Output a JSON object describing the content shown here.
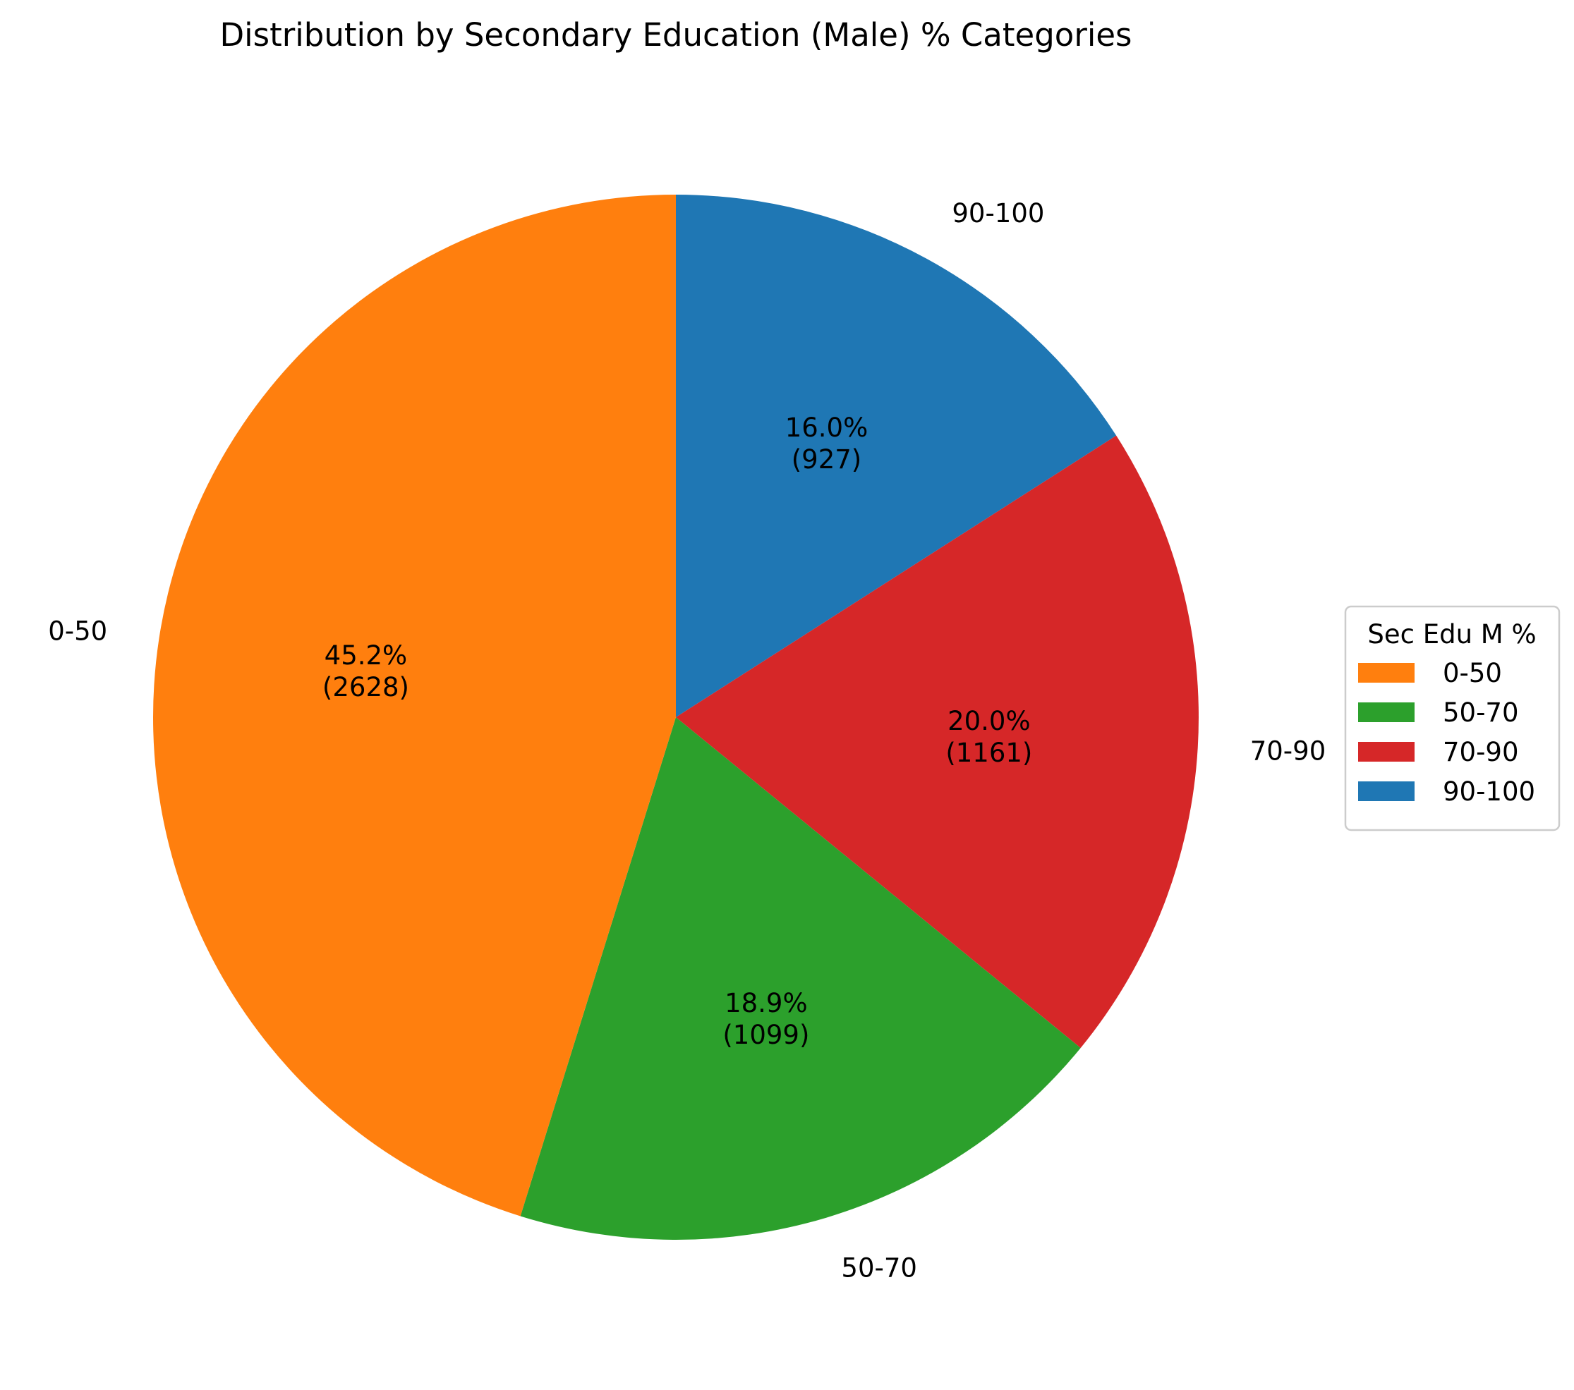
{
  "chart_data": {
    "type": "pie",
    "title": "Distribution by Secondary Education (Male) % Categories",
    "legend": {
      "title": "Sec Edu M %",
      "placement": "center-right",
      "entries": [
        "0-50",
        "50-70",
        "70-90",
        "90-100"
      ]
    },
    "slices": [
      {
        "label": "90-100",
        "value": 927,
        "percent_label": "16.0%",
        "count_label": "(927)",
        "color": "#1f77b4"
      },
      {
        "label": "70-90",
        "value": 1161,
        "percent_label": "20.0%",
        "count_label": "(1161)",
        "color": "#d62728"
      },
      {
        "label": "50-70",
        "value": 1099,
        "percent_label": "18.9%",
        "count_label": "(1099)",
        "color": "#2ca02c"
      },
      {
        "label": "0-50",
        "value": 2628,
        "percent_label": "45.2%",
        "count_label": "(2628)",
        "color": "#ff7f0e"
      }
    ],
    "start_angle_deg": 90,
    "direction": "clockwise"
  }
}
